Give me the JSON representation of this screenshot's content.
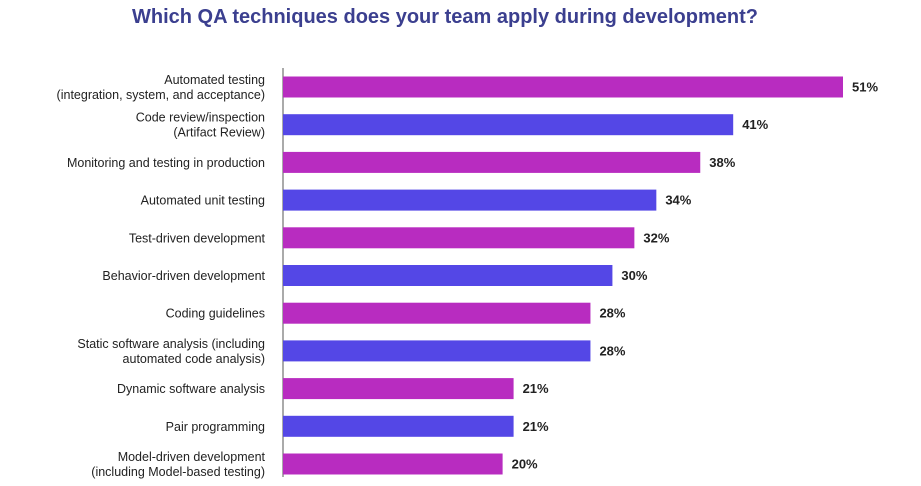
{
  "chart_data": {
    "type": "bar",
    "orientation": "horizontal",
    "title": "Which QA techniques does your team apply during development?",
    "categories": [
      [
        "Automated testing",
        "(integration, system, and acceptance)"
      ],
      [
        "Code review/inspection",
        "(Artifact Review)"
      ],
      [
        "Monitoring and testing in production"
      ],
      [
        "Automated unit testing"
      ],
      [
        "Test-driven development"
      ],
      [
        "Behavior-driven development"
      ],
      [
        "Coding guidelines"
      ],
      [
        "Static software analysis (including",
        "automated code analysis)"
      ],
      [
        "Dynamic software analysis"
      ],
      [
        "Pair programming"
      ],
      [
        "Model-driven development",
        "(including Model-based testing)"
      ]
    ],
    "values": [
      51,
      41,
      38,
      34,
      32,
      30,
      28,
      28,
      21,
      21,
      20
    ],
    "value_labels": [
      "51%",
      "41%",
      "38%",
      "34%",
      "32%",
      "30%",
      "28%",
      "28%",
      "21%",
      "21%",
      "20%"
    ],
    "unit": "%",
    "xlim": [
      0,
      51
    ],
    "xlabel": "",
    "ylabel": "",
    "grid": false,
    "legend": "none",
    "colors": [
      "#b82cc0",
      "#5447e6"
    ]
  }
}
